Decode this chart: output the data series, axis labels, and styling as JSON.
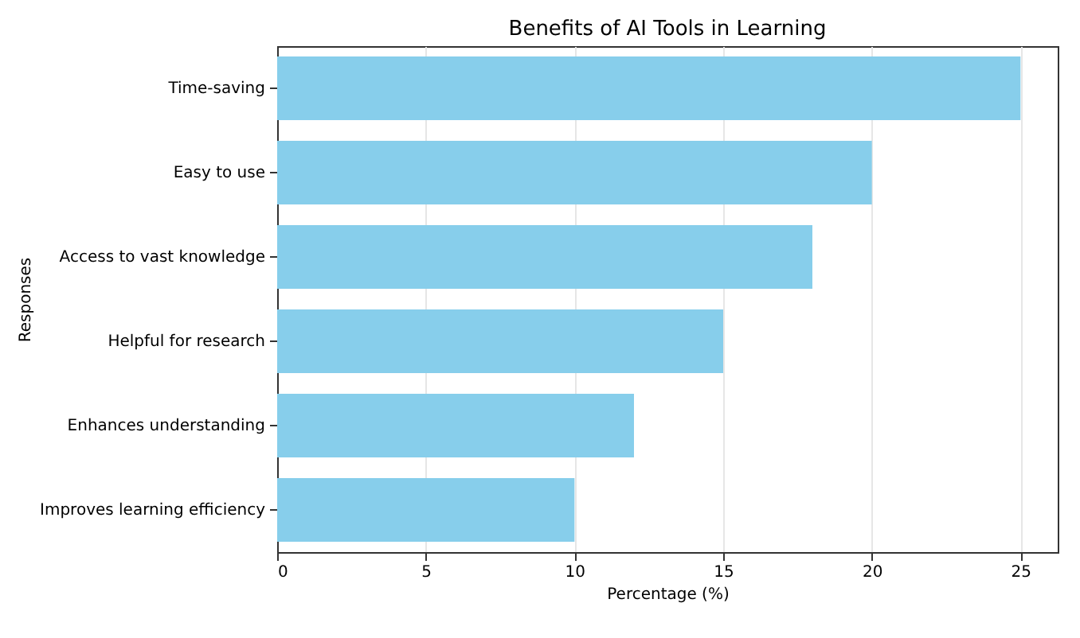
{
  "chart_data": {
    "type": "bar",
    "orientation": "horizontal",
    "title": "Benefits of AI Tools in Learning",
    "xlabel": "Percentage (%)",
    "ylabel": "Responses",
    "categories": [
      "Time-saving",
      "Easy to use",
      "Access to vast knowledge",
      "Helpful for research",
      "Enhances understanding",
      "Improves learning efficiency"
    ],
    "values": [
      25,
      20,
      18,
      15,
      12,
      10
    ],
    "color": "#87ceeb",
    "xlim": [
      0,
      26.25
    ],
    "xticks": [
      0,
      5,
      10,
      15,
      20,
      25
    ],
    "grid": "x"
  }
}
